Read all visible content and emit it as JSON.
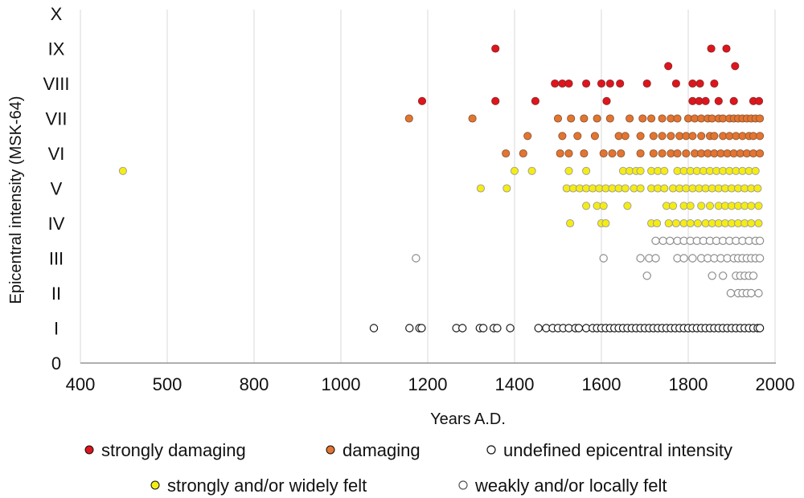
{
  "chart_data": {
    "type": "scatter",
    "xlabel": "Years A.D.",
    "ylabel": "Epicentral intensity (MSK-64)",
    "x_tick_labels": [
      "400",
      "500",
      "800",
      "1000",
      "1200",
      "1400",
      "1600",
      "1800",
      "2000"
    ],
    "y_tick_labels": [
      "0",
      "I",
      "II",
      "III",
      "IV",
      "V",
      "VI",
      "VII",
      "VIII",
      "IX",
      "X"
    ],
    "ylim": [
      0,
      10
    ],
    "grid": "vertical",
    "legend_position": "bottom",
    "colors": {
      "strongly_damaging": "#e0141c",
      "damaging": "#e4742f",
      "undefined": "#ffffff",
      "strongly_felt": "#f5ec14",
      "weakly_felt": "#ffffff"
    },
    "series": [
      {
        "name": "strongly damaging",
        "key": "strongly_damaging",
        "points": [
          [
            1356,
            9
          ],
          [
            1853,
            9
          ],
          [
            1888,
            9
          ],
          [
            1754,
            8.5
          ],
          [
            1908,
            8.5
          ],
          [
            1493,
            8
          ],
          [
            1510,
            8
          ],
          [
            1525,
            8
          ],
          [
            1565,
            8
          ],
          [
            1600,
            8
          ],
          [
            1620,
            8
          ],
          [
            1643,
            8
          ],
          [
            1705,
            8
          ],
          [
            1772,
            8
          ],
          [
            1810,
            8
          ],
          [
            1827,
            8
          ],
          [
            1860,
            8
          ],
          [
            1187,
            7.5
          ],
          [
            1356,
            7.5
          ],
          [
            1448,
            7.5
          ],
          [
            1612,
            7.5
          ],
          [
            1810,
            7.5
          ],
          [
            1825,
            7.5
          ],
          [
            1840,
            7.5
          ],
          [
            1870,
            7.5
          ],
          [
            1905,
            7.5
          ],
          [
            1950,
            7.5
          ],
          [
            1963,
            7.5
          ]
        ]
      },
      {
        "name": "damaging",
        "key": "damaging",
        "points": [
          [
            1157,
            7
          ],
          [
            1303,
            7
          ],
          [
            1500,
            7
          ],
          [
            1530,
            7
          ],
          [
            1560,
            7
          ],
          [
            1590,
            7
          ],
          [
            1620,
            7
          ],
          [
            1665,
            7
          ],
          [
            1695,
            7
          ],
          [
            1715,
            7
          ],
          [
            1740,
            7
          ],
          [
            1760,
            7
          ],
          [
            1775,
            7
          ],
          [
            1800,
            7
          ],
          [
            1815,
            7
          ],
          [
            1830,
            7
          ],
          [
            1845,
            7
          ],
          [
            1855,
            7
          ],
          [
            1870,
            7
          ],
          [
            1880,
            7
          ],
          [
            1895,
            7
          ],
          [
            1905,
            7
          ],
          [
            1915,
            7
          ],
          [
            1925,
            7
          ],
          [
            1935,
            7
          ],
          [
            1945,
            7
          ],
          [
            1955,
            7
          ],
          [
            1965,
            7
          ],
          [
            1430,
            6.5
          ],
          [
            1510,
            6.5
          ],
          [
            1545,
            6.5
          ],
          [
            1585,
            6.5
          ],
          [
            1640,
            6.5
          ],
          [
            1655,
            6.5
          ],
          [
            1690,
            6.5
          ],
          [
            1720,
            6.5
          ],
          [
            1740,
            6.5
          ],
          [
            1760,
            6.5
          ],
          [
            1780,
            6.5
          ],
          [
            1795,
            6.5
          ],
          [
            1810,
            6.5
          ],
          [
            1830,
            6.5
          ],
          [
            1850,
            6.5
          ],
          [
            1860,
            6.5
          ],
          [
            1880,
            6.5
          ],
          [
            1895,
            6.5
          ],
          [
            1910,
            6.5
          ],
          [
            1925,
            6.5
          ],
          [
            1940,
            6.5
          ],
          [
            1950,
            6.5
          ],
          [
            1965,
            6.5
          ],
          [
            1380,
            6
          ],
          [
            1420,
            6
          ],
          [
            1505,
            6
          ],
          [
            1525,
            6
          ],
          [
            1560,
            6
          ],
          [
            1605,
            6
          ],
          [
            1625,
            6
          ],
          [
            1645,
            6
          ],
          [
            1690,
            6
          ],
          [
            1720,
            6
          ],
          [
            1740,
            6
          ],
          [
            1760,
            6
          ],
          [
            1775,
            6
          ],
          [
            1795,
            6
          ],
          [
            1815,
            6
          ],
          [
            1830,
            6
          ],
          [
            1845,
            6
          ],
          [
            1860,
            6
          ],
          [
            1875,
            6
          ],
          [
            1890,
            6
          ],
          [
            1905,
            6
          ],
          [
            1920,
            6
          ],
          [
            1935,
            6
          ],
          [
            1950,
            6
          ],
          [
            1965,
            6
          ]
        ]
      },
      {
        "name": "strongly and/or widely felt",
        "key": "strongly_felt",
        "points": [
          [
            449,
            5.5
          ],
          [
            1400,
            5.5
          ],
          [
            1440,
            5.5
          ],
          [
            1525,
            5.5
          ],
          [
            1565,
            5.5
          ],
          [
            1650,
            5.5
          ],
          [
            1665,
            5.5
          ],
          [
            1680,
            5.5
          ],
          [
            1690,
            5.5
          ],
          [
            1715,
            5.5
          ],
          [
            1730,
            5.5
          ],
          [
            1745,
            5.5
          ],
          [
            1775,
            5.5
          ],
          [
            1790,
            5.5
          ],
          [
            1805,
            5.5
          ],
          [
            1820,
            5.5
          ],
          [
            1835,
            5.5
          ],
          [
            1850,
            5.5
          ],
          [
            1865,
            5.5
          ],
          [
            1880,
            5.5
          ],
          [
            1895,
            5.5
          ],
          [
            1910,
            5.5
          ],
          [
            1925,
            5.5
          ],
          [
            1940,
            5.5
          ],
          [
            1955,
            5.5
          ],
          [
            1322,
            5
          ],
          [
            1382,
            5
          ],
          [
            1520,
            5
          ],
          [
            1535,
            5
          ],
          [
            1550,
            5
          ],
          [
            1565,
            5
          ],
          [
            1580,
            5
          ],
          [
            1595,
            5
          ],
          [
            1610,
            5
          ],
          [
            1625,
            5
          ],
          [
            1640,
            5
          ],
          [
            1655,
            5
          ],
          [
            1675,
            5
          ],
          [
            1690,
            5
          ],
          [
            1715,
            5
          ],
          [
            1730,
            5
          ],
          [
            1745,
            5
          ],
          [
            1765,
            5
          ],
          [
            1780,
            5
          ],
          [
            1795,
            5
          ],
          [
            1810,
            5
          ],
          [
            1825,
            5
          ],
          [
            1840,
            5
          ],
          [
            1855,
            5
          ],
          [
            1870,
            5
          ],
          [
            1885,
            5
          ],
          [
            1900,
            5
          ],
          [
            1915,
            5
          ],
          [
            1930,
            5
          ],
          [
            1945,
            5
          ],
          [
            1960,
            5
          ],
          [
            1565,
            4.5
          ],
          [
            1590,
            4.5
          ],
          [
            1605,
            4.5
          ],
          [
            1660,
            4.5
          ],
          [
            1750,
            4.5
          ],
          [
            1765,
            4.5
          ],
          [
            1790,
            4.5
          ],
          [
            1805,
            4.5
          ],
          [
            1830,
            4.5
          ],
          [
            1850,
            4.5
          ],
          [
            1870,
            4.5
          ],
          [
            1885,
            4.5
          ],
          [
            1900,
            4.5
          ],
          [
            1915,
            4.5
          ],
          [
            1930,
            4.5
          ],
          [
            1945,
            4.5
          ],
          [
            1962,
            4.5
          ],
          [
            1528,
            4
          ],
          [
            1600,
            4
          ],
          [
            1610,
            4
          ],
          [
            1715,
            4
          ],
          [
            1728,
            4
          ],
          [
            1755,
            4
          ],
          [
            1772,
            4
          ],
          [
            1790,
            4
          ],
          [
            1805,
            4
          ],
          [
            1822,
            4
          ],
          [
            1840,
            4
          ],
          [
            1855,
            4
          ],
          [
            1870,
            4
          ],
          [
            1885,
            4
          ],
          [
            1900,
            4
          ],
          [
            1915,
            4
          ],
          [
            1930,
            4
          ],
          [
            1945,
            4
          ],
          [
            1962,
            4
          ]
        ]
      },
      {
        "name": "weakly and/or locally felt",
        "key": "weakly_felt",
        "points": [
          [
            1725,
            3.5
          ],
          [
            1742,
            3.5
          ],
          [
            1758,
            3.5
          ],
          [
            1775,
            3.5
          ],
          [
            1790,
            3.5
          ],
          [
            1805,
            3.5
          ],
          [
            1820,
            3.5
          ],
          [
            1835,
            3.5
          ],
          [
            1850,
            3.5
          ],
          [
            1865,
            3.5
          ],
          [
            1880,
            3.5
          ],
          [
            1895,
            3.5
          ],
          [
            1910,
            3.5
          ],
          [
            1925,
            3.5
          ],
          [
            1940,
            3.5
          ],
          [
            1955,
            3.5
          ],
          [
            1965,
            3.5
          ],
          [
            1173,
            3
          ],
          [
            1605,
            3
          ],
          [
            1690,
            3
          ],
          [
            1710,
            3
          ],
          [
            1725,
            3
          ],
          [
            1775,
            3
          ],
          [
            1790,
            3
          ],
          [
            1810,
            3
          ],
          [
            1830,
            3
          ],
          [
            1845,
            3
          ],
          [
            1860,
            3
          ],
          [
            1875,
            3
          ],
          [
            1890,
            3
          ],
          [
            1905,
            3
          ],
          [
            1915,
            3
          ],
          [
            1925,
            3
          ],
          [
            1935,
            3
          ],
          [
            1945,
            3
          ],
          [
            1955,
            3
          ],
          [
            1965,
            3
          ],
          [
            1705,
            2.5
          ],
          [
            1855,
            2.5
          ],
          [
            1880,
            2.5
          ],
          [
            1910,
            2.5
          ],
          [
            1920,
            2.5
          ],
          [
            1930,
            2.5
          ],
          [
            1940,
            2.5
          ],
          [
            1950,
            2.5
          ],
          [
            1898,
            2
          ],
          [
            1915,
            2
          ],
          [
            1925,
            2
          ],
          [
            1935,
            2
          ],
          [
            1945,
            2
          ],
          [
            1962,
            2
          ]
        ]
      },
      {
        "name": "undefined epicentral intensity",
        "key": "undefined",
        "points": [
          [
            1076,
            1
          ],
          [
            1158,
            1
          ],
          [
            1181,
            1
          ],
          [
            1186,
            1
          ],
          [
            1266,
            1
          ],
          [
            1280,
            1
          ],
          [
            1320,
            1
          ],
          [
            1328,
            1
          ],
          [
            1352,
            1
          ],
          [
            1360,
            1
          ],
          [
            1390,
            1
          ],
          [
            1455,
            1
          ],
          [
            1473,
            1
          ],
          [
            1488,
            1
          ],
          [
            1500,
            1
          ],
          [
            1512,
            1
          ],
          [
            1525,
            1
          ],
          [
            1540,
            1
          ],
          [
            1548,
            1
          ],
          [
            1565,
            1
          ],
          [
            1580,
            1
          ],
          [
            1590,
            1
          ],
          [
            1600,
            1
          ],
          [
            1610,
            1
          ],
          [
            1620,
            1
          ],
          [
            1630,
            1
          ],
          [
            1640,
            1
          ],
          [
            1650,
            1
          ],
          [
            1660,
            1
          ],
          [
            1670,
            1
          ],
          [
            1680,
            1
          ],
          [
            1690,
            1
          ],
          [
            1700,
            1
          ],
          [
            1710,
            1
          ],
          [
            1720,
            1
          ],
          [
            1730,
            1
          ],
          [
            1740,
            1
          ],
          [
            1750,
            1
          ],
          [
            1760,
            1
          ],
          [
            1770,
            1
          ],
          [
            1780,
            1
          ],
          [
            1790,
            1
          ],
          [
            1800,
            1
          ],
          [
            1810,
            1
          ],
          [
            1820,
            1
          ],
          [
            1830,
            1
          ],
          [
            1840,
            1
          ],
          [
            1850,
            1
          ],
          [
            1860,
            1
          ],
          [
            1870,
            1
          ],
          [
            1880,
            1
          ],
          [
            1890,
            1
          ],
          [
            1900,
            1
          ],
          [
            1910,
            1
          ],
          [
            1920,
            1
          ],
          [
            1930,
            1
          ],
          [
            1940,
            1
          ],
          [
            1950,
            1
          ],
          [
            1960,
            1
          ],
          [
            1965,
            1
          ]
        ]
      }
    ]
  }
}
